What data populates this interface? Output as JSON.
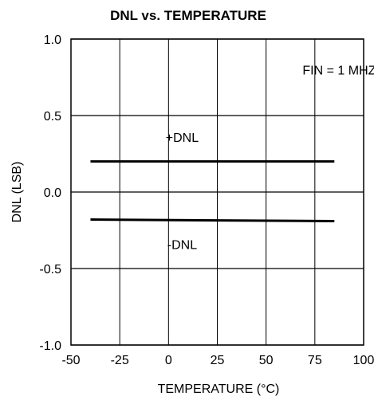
{
  "chart_data": {
    "type": "line",
    "title": "DNL vs. TEMPERATURE",
    "xlabel": "TEMPERATURE (°C)",
    "ylabel": "DNL (LSB)",
    "xlim": [
      -50,
      100
    ],
    "ylim": [
      -1.0,
      1.0
    ],
    "x_ticks": [
      -50,
      -25,
      0,
      25,
      50,
      75,
      100
    ],
    "x_tick_labels": [
      "-50",
      "-25",
      "0",
      "25",
      "50",
      "75",
      "100"
    ],
    "y_ticks": [
      1.0,
      0.5,
      0.0,
      -0.5,
      -1.0
    ],
    "y_tick_labels": [
      "1.0",
      "0.5",
      "0.0",
      "-0.5",
      "-1.0"
    ],
    "grid": true,
    "series": [
      {
        "name": "+DNL",
        "x": [
          -40,
          85
        ],
        "y": [
          0.2,
          0.2
        ]
      },
      {
        "name": "-DNL",
        "x": [
          -40,
          85
        ],
        "y": [
          -0.18,
          -0.19
        ]
      }
    ],
    "annotations": [
      {
        "text": "FIN = 1 MHZ",
        "x": 87.5,
        "y": 0.8
      },
      {
        "text": "+DNL",
        "x": 7,
        "y": 0.36
      },
      {
        "text": "-DNL",
        "x": 7,
        "y": -0.34
      }
    ],
    "colors": {
      "line": "#000000",
      "grid": "#000000",
      "background": "#ffffff"
    }
  }
}
